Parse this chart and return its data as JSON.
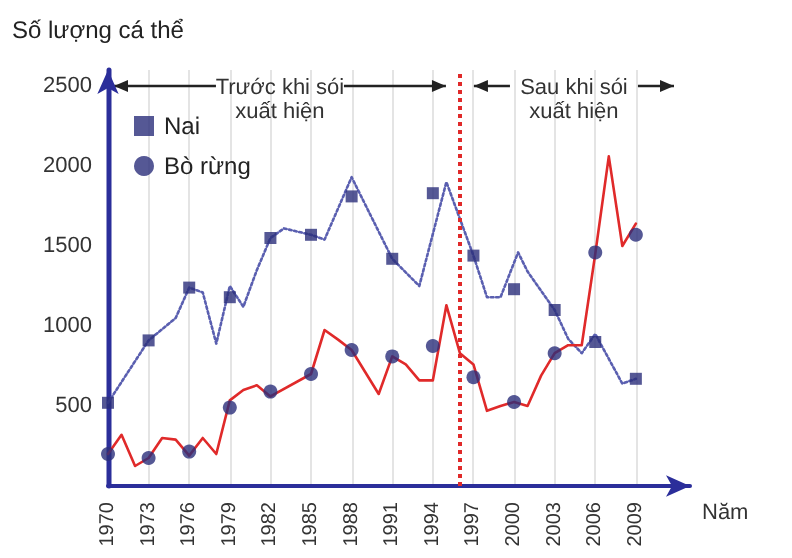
{
  "chart_data": {
    "type": "line",
    "xlabel": "Năm",
    "ylabel": "Số lượng cá thể",
    "xlim": [
      1970,
      2013
    ],
    "xticks": [
      1970,
      1973,
      1976,
      1979,
      1982,
      1985,
      1988,
      1991,
      1994,
      1997,
      2000,
      2003,
      2006,
      2009
    ],
    "ylim": [
      0,
      2600
    ],
    "yticks": [
      500,
      1000,
      1500,
      2000,
      2500
    ],
    "grid": "x",
    "legend": "top left",
    "series": [
      {
        "color": "#5a5fb0",
        "line_style": "dotted",
        "marker": "none",
        "x": [
          1970,
          1973,
          1974,
          1975,
          1976,
          1977,
          1978,
          1979,
          1980,
          1981,
          1982,
          1983,
          1984,
          1985,
          1986,
          1988,
          1991,
          1993,
          1995,
          1997,
          1998,
          1999,
          2000.3,
          2001,
          2003,
          2004,
          2005,
          2006,
          2008,
          2009
        ],
        "values": [
          520,
          910,
          980,
          1050,
          1240,
          1210,
          890,
          1250,
          1120,
          1350,
          1550,
          1610,
          1590,
          1570,
          1540,
          1930,
          1420,
          1250,
          1900,
          1440,
          1180,
          1180,
          1460,
          1340,
          1100,
          920,
          830,
          950,
          640,
          670
        ]
      },
      {
        "color": "#e02a2a",
        "line_style": "solid",
        "marker": "none",
        "x": [
          1970,
          1971,
          1972,
          1973,
          1974,
          1975,
          1976,
          1977,
          1978,
          1979,
          1980,
          1981,
          1982,
          1985,
          1986,
          1987,
          1988,
          1990,
          1991,
          1992,
          1993,
          1994,
          1995,
          1996,
          1997,
          1998,
          1999,
          2000,
          2001,
          2002,
          2003,
          2004,
          2005,
          2006,
          2007,
          2008,
          2009
        ],
        "values": [
          200,
          320,
          125,
          175,
          300,
          290,
          190,
          300,
          200,
          535,
          600,
          630,
          560,
          700,
          975,
          915,
          850,
          575,
          810,
          760,
          660,
          660,
          1130,
          830,
          760,
          470,
          500,
          525,
          500,
          690,
          830,
          880,
          880,
          1450,
          2060,
          1500,
          1640
        ]
      },
      {
        "type": "scatter",
        "name": "Nai",
        "color": "#2b2e7a",
        "marker": "square",
        "x": [
          1970,
          1973,
          1976,
          1979,
          1982,
          1985,
          1988,
          1991,
          1994,
          1997,
          2000,
          2003,
          2006,
          2009
        ],
        "values": [
          520,
          910,
          1240,
          1180,
          1550,
          1570,
          1810,
          1420,
          1830,
          1440,
          1230,
          1100,
          900,
          670
        ]
      },
      {
        "type": "scatter",
        "name": "Bò rừng",
        "color": "#2b2e7a",
        "marker": "circle",
        "x": [
          1970,
          1973,
          1976,
          1979,
          1982,
          1985,
          1988,
          1991,
          1994,
          1997,
          2000,
          2003,
          2006,
          2009
        ],
        "values": [
          200,
          175,
          215,
          490,
          590,
          700,
          850,
          810,
          875,
          680,
          525,
          830,
          1460,
          1570
        ]
      }
    ],
    "ref_lines": [
      {
        "axis": "x",
        "value": 1996,
        "color": "#e02a2a",
        "line_style": "dotted"
      }
    ],
    "annotations": [
      "Trước khi sói\nxuất hiện",
      "Sau khi sói\nxuất hiện"
    ]
  }
}
